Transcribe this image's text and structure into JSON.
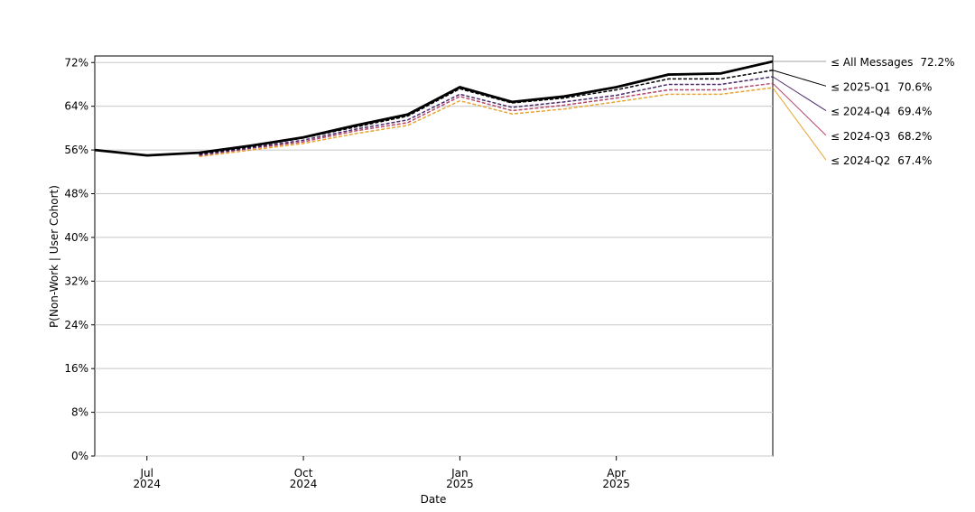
{
  "chart_data": {
    "type": "line",
    "y_label": "P(Non-Work | User Cohort)",
    "x_label": "Date",
    "x": [
      "2024-06",
      "2024-07",
      "2024-08",
      "2024-09",
      "2024-10",
      "2024-11",
      "2024-12",
      "2025-01",
      "2025-02",
      "2025-03",
      "2025-04",
      "2025-05",
      "2025-06",
      "2025-07"
    ],
    "xlim": [
      "2024-06",
      "2025-07"
    ],
    "xticks": [
      {
        "value": "2024-07",
        "label": "Jul 2024"
      },
      {
        "value": "2024-10",
        "label": "Oct 2024"
      },
      {
        "value": "2025-01",
        "label": "Jan 2025"
      },
      {
        "value": "2025-04",
        "label": "Apr 2025"
      }
    ],
    "ylim": [
      0,
      73.2
    ],
    "yticks": [
      {
        "value": 0,
        "label": "0%"
      },
      {
        "value": 8,
        "label": "8%"
      },
      {
        "value": 16,
        "label": "16%"
      },
      {
        "value": 24,
        "label": "24%"
      },
      {
        "value": 32,
        "label": "32%"
      },
      {
        "value": 40,
        "label": "40%"
      },
      {
        "value": 48,
        "label": "48%"
      },
      {
        "value": 56,
        "label": "56%"
      },
      {
        "value": 64,
        "label": "64%"
      },
      {
        "value": 72,
        "label": "72%"
      }
    ],
    "grid": true,
    "series": [
      {
        "name": "≤ All Messages",
        "color": "#000000",
        "label_color": "#a0a0a0",
        "dashed": false,
        "values": [
          56,
          55,
          55.5,
          56.8,
          58.3,
          60.5,
          62.5,
          67.5,
          64.8,
          65.8,
          67.5,
          69.8,
          70,
          72.2
        ],
        "value_labels": [
          null,
          null,
          null,
          null,
          null,
          null,
          null,
          null,
          null,
          null,
          null,
          null,
          null,
          "72.2%"
        ]
      },
      {
        "name": "≤ 2025-Q1",
        "color": "#000000",
        "label_color": "#000000",
        "dashed": true,
        "values": [
          null,
          null,
          55.3,
          56.6,
          58.2,
          60.2,
          62.2,
          67.2,
          64.6,
          65.5,
          67,
          69,
          69,
          70.6
        ],
        "value_labels": [
          null,
          null,
          null,
          null,
          null,
          null,
          null,
          null,
          null,
          null,
          null,
          null,
          null,
          "70.6%"
        ]
      },
      {
        "name": "≤ 2024-Q4",
        "color": "#4b2a6b",
        "label_color": "#4b2a6b",
        "dashed": true,
        "values": [
          null,
          null,
          55.1,
          56.4,
          57.8,
          59.8,
          61.5,
          66.2,
          63.8,
          64.8,
          66,
          68,
          68,
          69.4
        ],
        "value_labels": [
          null,
          null,
          null,
          null,
          null,
          null,
          null,
          null,
          null,
          null,
          null,
          null,
          null,
          "69.4%"
        ]
      },
      {
        "name": "≤ 2024-Q3",
        "color": "#b5476b",
        "label_color": "#b5476b",
        "dashed": true,
        "values": [
          null,
          null,
          55,
          56.3,
          57.5,
          59.5,
          61,
          65.8,
          63.2,
          64.2,
          65.5,
          67,
          67,
          68.2
        ],
        "value_labels": [
          null,
          null,
          null,
          null,
          null,
          null,
          null,
          null,
          null,
          null,
          null,
          null,
          null,
          "68.2%"
        ]
      },
      {
        "name": "≤ 2024-Q2",
        "color": "#e6a532",
        "label_color": "#e6a532",
        "dashed": true,
        "values": [
          null,
          null,
          54.8,
          56,
          57.2,
          59,
          60.5,
          65,
          62.6,
          63.5,
          64.8,
          66.2,
          66.2,
          67.4
        ],
        "value_labels": [
          null,
          null,
          null,
          null,
          null,
          null,
          null,
          null,
          null,
          null,
          null,
          null,
          null,
          "67.4%"
        ]
      }
    ]
  }
}
